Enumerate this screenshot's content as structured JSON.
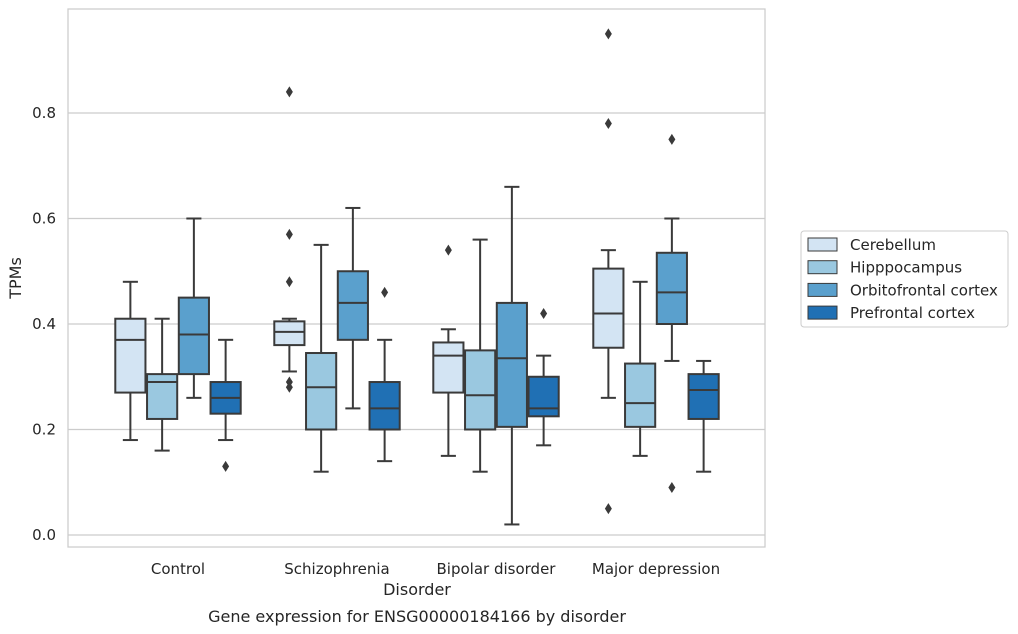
{
  "chart_data": {
    "type": "box",
    "caption": "Gene expression for ENSG00000184166 by disorder",
    "xlabel": "Disorder",
    "ylabel": "TPMs",
    "categories": [
      "Control",
      "Schizophrenia",
      "Bipolar disorder",
      "Major depression"
    ],
    "ylim": [
      -0.02,
      1.0
    ],
    "yticks": [
      0.0,
      0.2,
      0.4,
      0.6,
      0.8
    ],
    "ytick_labels": [
      "0.0",
      "0.2",
      "0.4",
      "0.6",
      "0.8"
    ],
    "grid": true,
    "legend_position": "right",
    "series": [
      {
        "name": "Cerebellum",
        "color": "#d3e4f3",
        "boxes": [
          {
            "whislo": 0.18,
            "q1": 0.27,
            "med": 0.37,
            "q3": 0.41,
            "whishi": 0.48,
            "fliers": []
          },
          {
            "whislo": 0.31,
            "q1": 0.36,
            "med": 0.385,
            "q3": 0.405,
            "whishi": 0.41,
            "fliers": [
              0.84,
              0.57,
              0.48,
              0.29,
              0.28
            ]
          },
          {
            "whislo": 0.15,
            "q1": 0.27,
            "med": 0.34,
            "q3": 0.365,
            "whishi": 0.39,
            "fliers": [
              0.54
            ]
          },
          {
            "whislo": 0.26,
            "q1": 0.355,
            "med": 0.42,
            "q3": 0.505,
            "whishi": 0.54,
            "fliers": [
              0.95,
              0.78,
              0.05
            ]
          }
        ]
      },
      {
        "name": "Hipppocampus",
        "color": "#9ac8e0",
        "boxes": [
          {
            "whislo": 0.16,
            "q1": 0.22,
            "med": 0.29,
            "q3": 0.305,
            "whishi": 0.41,
            "fliers": []
          },
          {
            "whislo": 0.12,
            "q1": 0.2,
            "med": 0.28,
            "q3": 0.345,
            "whishi": 0.55,
            "fliers": []
          },
          {
            "whislo": 0.12,
            "q1": 0.2,
            "med": 0.265,
            "q3": 0.35,
            "whishi": 0.56,
            "fliers": []
          },
          {
            "whislo": 0.15,
            "q1": 0.205,
            "med": 0.25,
            "q3": 0.325,
            "whishi": 0.48,
            "fliers": []
          }
        ]
      },
      {
        "name": "Orbitofrontal cortex",
        "color": "#5aa0cd",
        "boxes": [
          {
            "whislo": 0.26,
            "q1": 0.305,
            "med": 0.38,
            "q3": 0.45,
            "whishi": 0.6,
            "fliers": []
          },
          {
            "whislo": 0.24,
            "q1": 0.37,
            "med": 0.44,
            "q3": 0.5,
            "whishi": 0.62,
            "fliers": []
          },
          {
            "whislo": 0.02,
            "q1": 0.205,
            "med": 0.335,
            "q3": 0.44,
            "whishi": 0.66,
            "fliers": []
          },
          {
            "whislo": 0.33,
            "q1": 0.4,
            "med": 0.46,
            "q3": 0.535,
            "whishi": 0.6,
            "fliers": [
              0.75,
              0.09
            ]
          }
        ]
      },
      {
        "name": "Prefrontal cortex",
        "color": "#2070b4",
        "boxes": [
          {
            "whislo": 0.18,
            "q1": 0.23,
            "med": 0.26,
            "q3": 0.29,
            "whishi": 0.37,
            "fliers": [
              0.13
            ]
          },
          {
            "whislo": 0.14,
            "q1": 0.2,
            "med": 0.24,
            "q3": 0.29,
            "whishi": 0.37,
            "fliers": [
              0.46
            ]
          },
          {
            "whislo": 0.17,
            "q1": 0.225,
            "med": 0.24,
            "q3": 0.3,
            "whishi": 0.34,
            "fliers": [
              0.42
            ]
          },
          {
            "whislo": 0.12,
            "q1": 0.22,
            "med": 0.275,
            "q3": 0.305,
            "whishi": 0.33,
            "fliers": []
          }
        ]
      }
    ]
  }
}
